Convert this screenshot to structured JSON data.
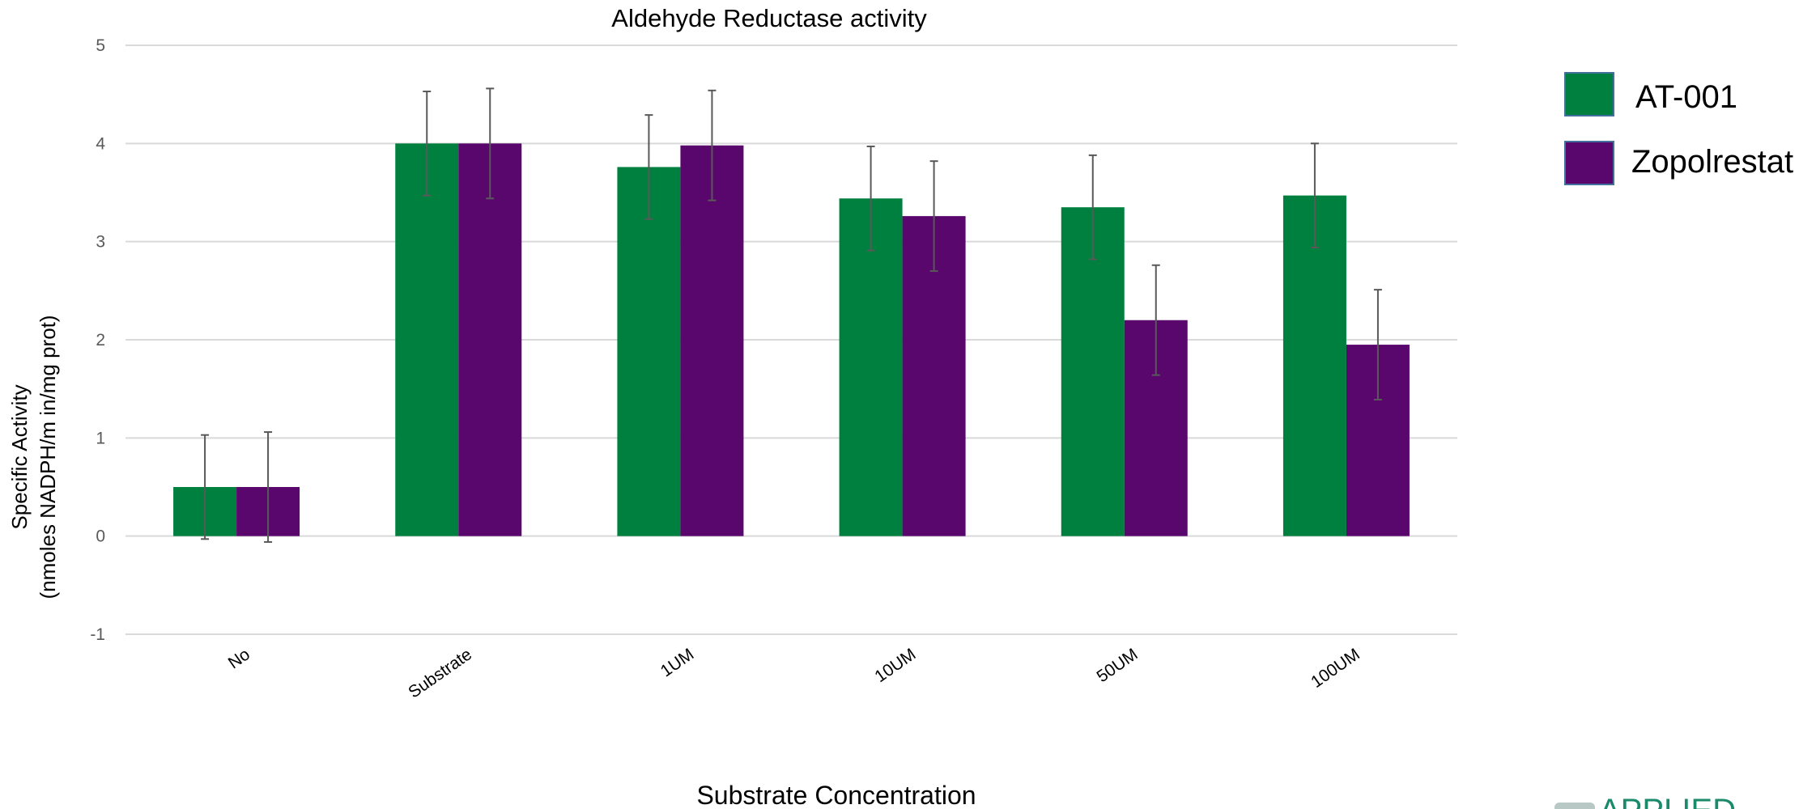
{
  "chart_data": {
    "type": "bar",
    "title": "Aldehyde Reductase activity",
    "xlabel": "Substrate Concentration",
    "ylabel_line1": "Specific Activity",
    "ylabel_line2": "(nmoles NADPH/m in/mg prot)",
    "ylim": [
      -1,
      5
    ],
    "yticks": [
      "5",
      "4",
      "3",
      "2",
      "1",
      "0",
      "-1"
    ],
    "categories": [
      "No",
      "Substrate",
      "1UM",
      "10UM",
      "50UM",
      "100UM"
    ],
    "series": [
      {
        "name": "AT-001",
        "color": "#00803f",
        "values": [
          0.5,
          4.0,
          3.76,
          3.44,
          3.35,
          3.47
        ],
        "errors": [
          0.53,
          0.53,
          0.53,
          0.53,
          0.53,
          0.53
        ]
      },
      {
        "name": "Zopolrestat",
        "color": "#59076d",
        "values": [
          0.5,
          4.0,
          3.98,
          3.26,
          2.2,
          1.95
        ],
        "errors": [
          0.56,
          0.56,
          0.56,
          0.56,
          0.56,
          0.56
        ]
      }
    ],
    "grid": true,
    "legend_position": "right"
  },
  "logo": {
    "text": "APPLIED"
  }
}
